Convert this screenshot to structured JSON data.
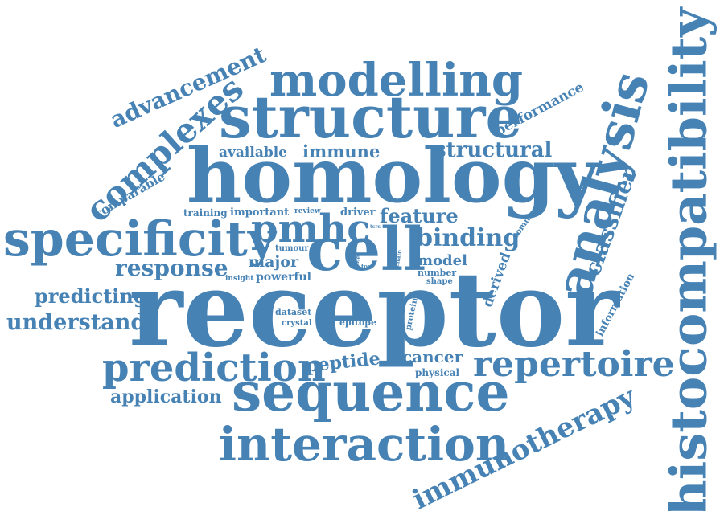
{
  "colors": {
    "word": "#4682b4",
    "background": "#ffffff"
  },
  "words": {
    "receptor": "receptor",
    "homology": "homology",
    "histocompatibility": "histocompatibility",
    "structure": "structure",
    "modelling": "modelling",
    "sequence": "sequence",
    "specificity": "specificity",
    "analysis": "analysis",
    "interaction": "interaction",
    "prediction": "prediction",
    "repertoire": "repertoire",
    "complexes": "complexes",
    "cell": "cell",
    "pmhc": "pmhc",
    "immunotherapy": "immunotherapy",
    "advancement": "advancement",
    "binding": "binding",
    "structural": "structural",
    "classifier": "classifier",
    "response": "response",
    "feature": "feature",
    "understand": "understand",
    "predicting": "predicting",
    "application": "application",
    "peptide": "peptide",
    "cancer": "cancer",
    "performance": "performance",
    "available": "available",
    "immune": "immune",
    "comparable": "comparable",
    "major": "major",
    "model": "model",
    "derived": "derived",
    "information": "information",
    "powerful": "powerful",
    "dataset": "dataset",
    "epitope": "epitope",
    "crystal": "crystal",
    "physical": "physical",
    "training": "training",
    "important": "important",
    "review": "review",
    "driver": "driver",
    "tumour": "tumour",
    "insight": "insight",
    "number": "number",
    "shape": "shape",
    "protein": "protein",
    "common": "common",
    "role": "role",
    "tool": "tool",
    "chain": "chain",
    "tcrs": "tcrs"
  }
}
